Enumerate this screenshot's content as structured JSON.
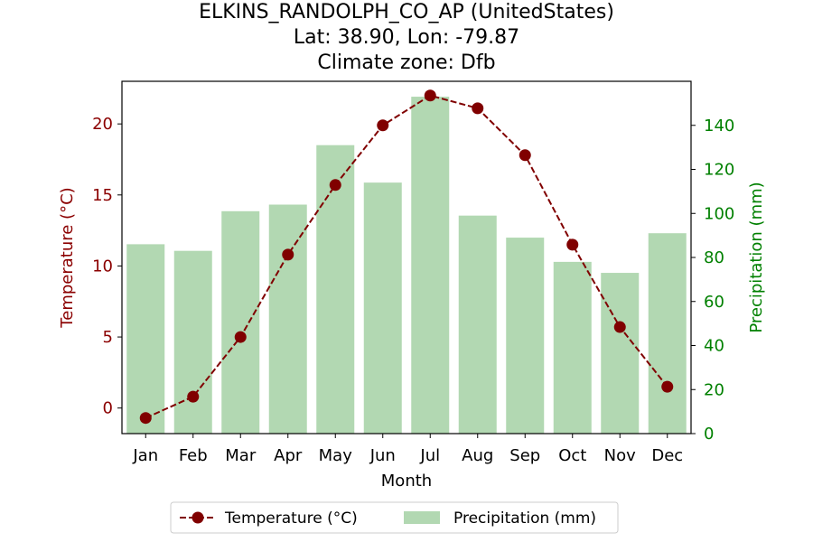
{
  "title_lines": [
    "ELKINS_RANDOLPH_CO_AP (UnitedStates)",
    "Lat: 38.90, Lon: -79.87",
    "Climate zone: Dfb"
  ],
  "colors": {
    "temperature": "#800000",
    "temperature_axis": "#8b0000",
    "precipitation_bar": "#b2d8b2",
    "precipitation_axis": "#008000"
  },
  "chart_data": {
    "type": "bar+line",
    "categories": [
      "Jan",
      "Feb",
      "Mar",
      "Apr",
      "May",
      "Jun",
      "Jul",
      "Aug",
      "Sep",
      "Oct",
      "Nov",
      "Dec"
    ],
    "xlabel": "Month",
    "ylabel_left": "Temperature (°C)",
    "ylabel_right": "Precipitation (mm)",
    "ylim_left": [
      -1.8,
      23.0
    ],
    "ylim_right": [
      0,
      160
    ],
    "yticks_left": [
      0,
      5,
      10,
      15,
      20
    ],
    "yticks_right": [
      0,
      20,
      40,
      60,
      80,
      100,
      120,
      140
    ],
    "grid": false,
    "legend_position": "bottom-center",
    "series": [
      {
        "name": "Temperature (°C)",
        "kind": "line",
        "axis": "left",
        "values": [
          -0.7,
          0.8,
          5.0,
          10.8,
          15.7,
          19.9,
          22.0,
          21.1,
          17.8,
          11.5,
          5.7,
          1.5
        ]
      },
      {
        "name": "Precipitation (mm)",
        "kind": "bar",
        "axis": "right",
        "values": [
          86,
          83,
          101,
          104,
          131,
          114,
          153,
          99,
          89,
          78,
          73,
          91
        ]
      }
    ]
  }
}
